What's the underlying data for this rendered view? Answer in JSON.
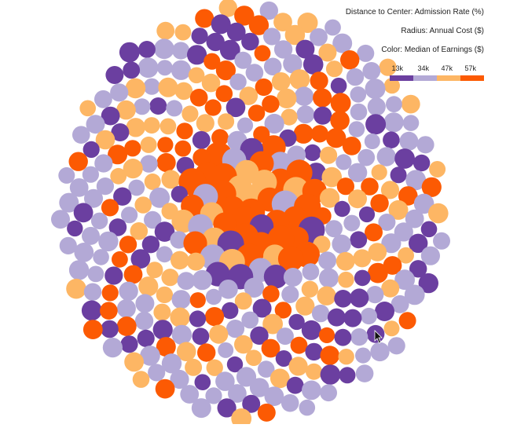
{
  "legend": {
    "distance_label": "Distance to Center: Admission Rate (%)",
    "radius_label": "Radius: Annual Cost ($)",
    "color_label": "Color: Median of Earnings ($)",
    "ticks": [
      "13k",
      "34k",
      "47k",
      "57k"
    ],
    "colors": [
      "#6b3fa0",
      "#b3a9d6",
      "#fdb664",
      "#fc5a03"
    ]
  },
  "chart_data": {
    "type": "bubble",
    "encoding": {
      "distance_to_center": "Admission Rate (%)",
      "radius": "Annual Cost ($)",
      "color": "Median of Earnings ($)"
    },
    "color_scale": {
      "ticks": [
        "13k",
        "34k",
        "47k",
        "57k"
      ],
      "colors": [
        "#6b3fa0",
        "#b3a9d6",
        "#fdb664",
        "#fc5a03"
      ]
    },
    "bubble_count": 400,
    "earnings_class_counts": {
      "13k-34k": 80,
      "34k-47k": 120,
      "47k-57k": 90,
      "57k+": 110
    },
    "cluster_center": [
      320,
      270
    ]
  }
}
